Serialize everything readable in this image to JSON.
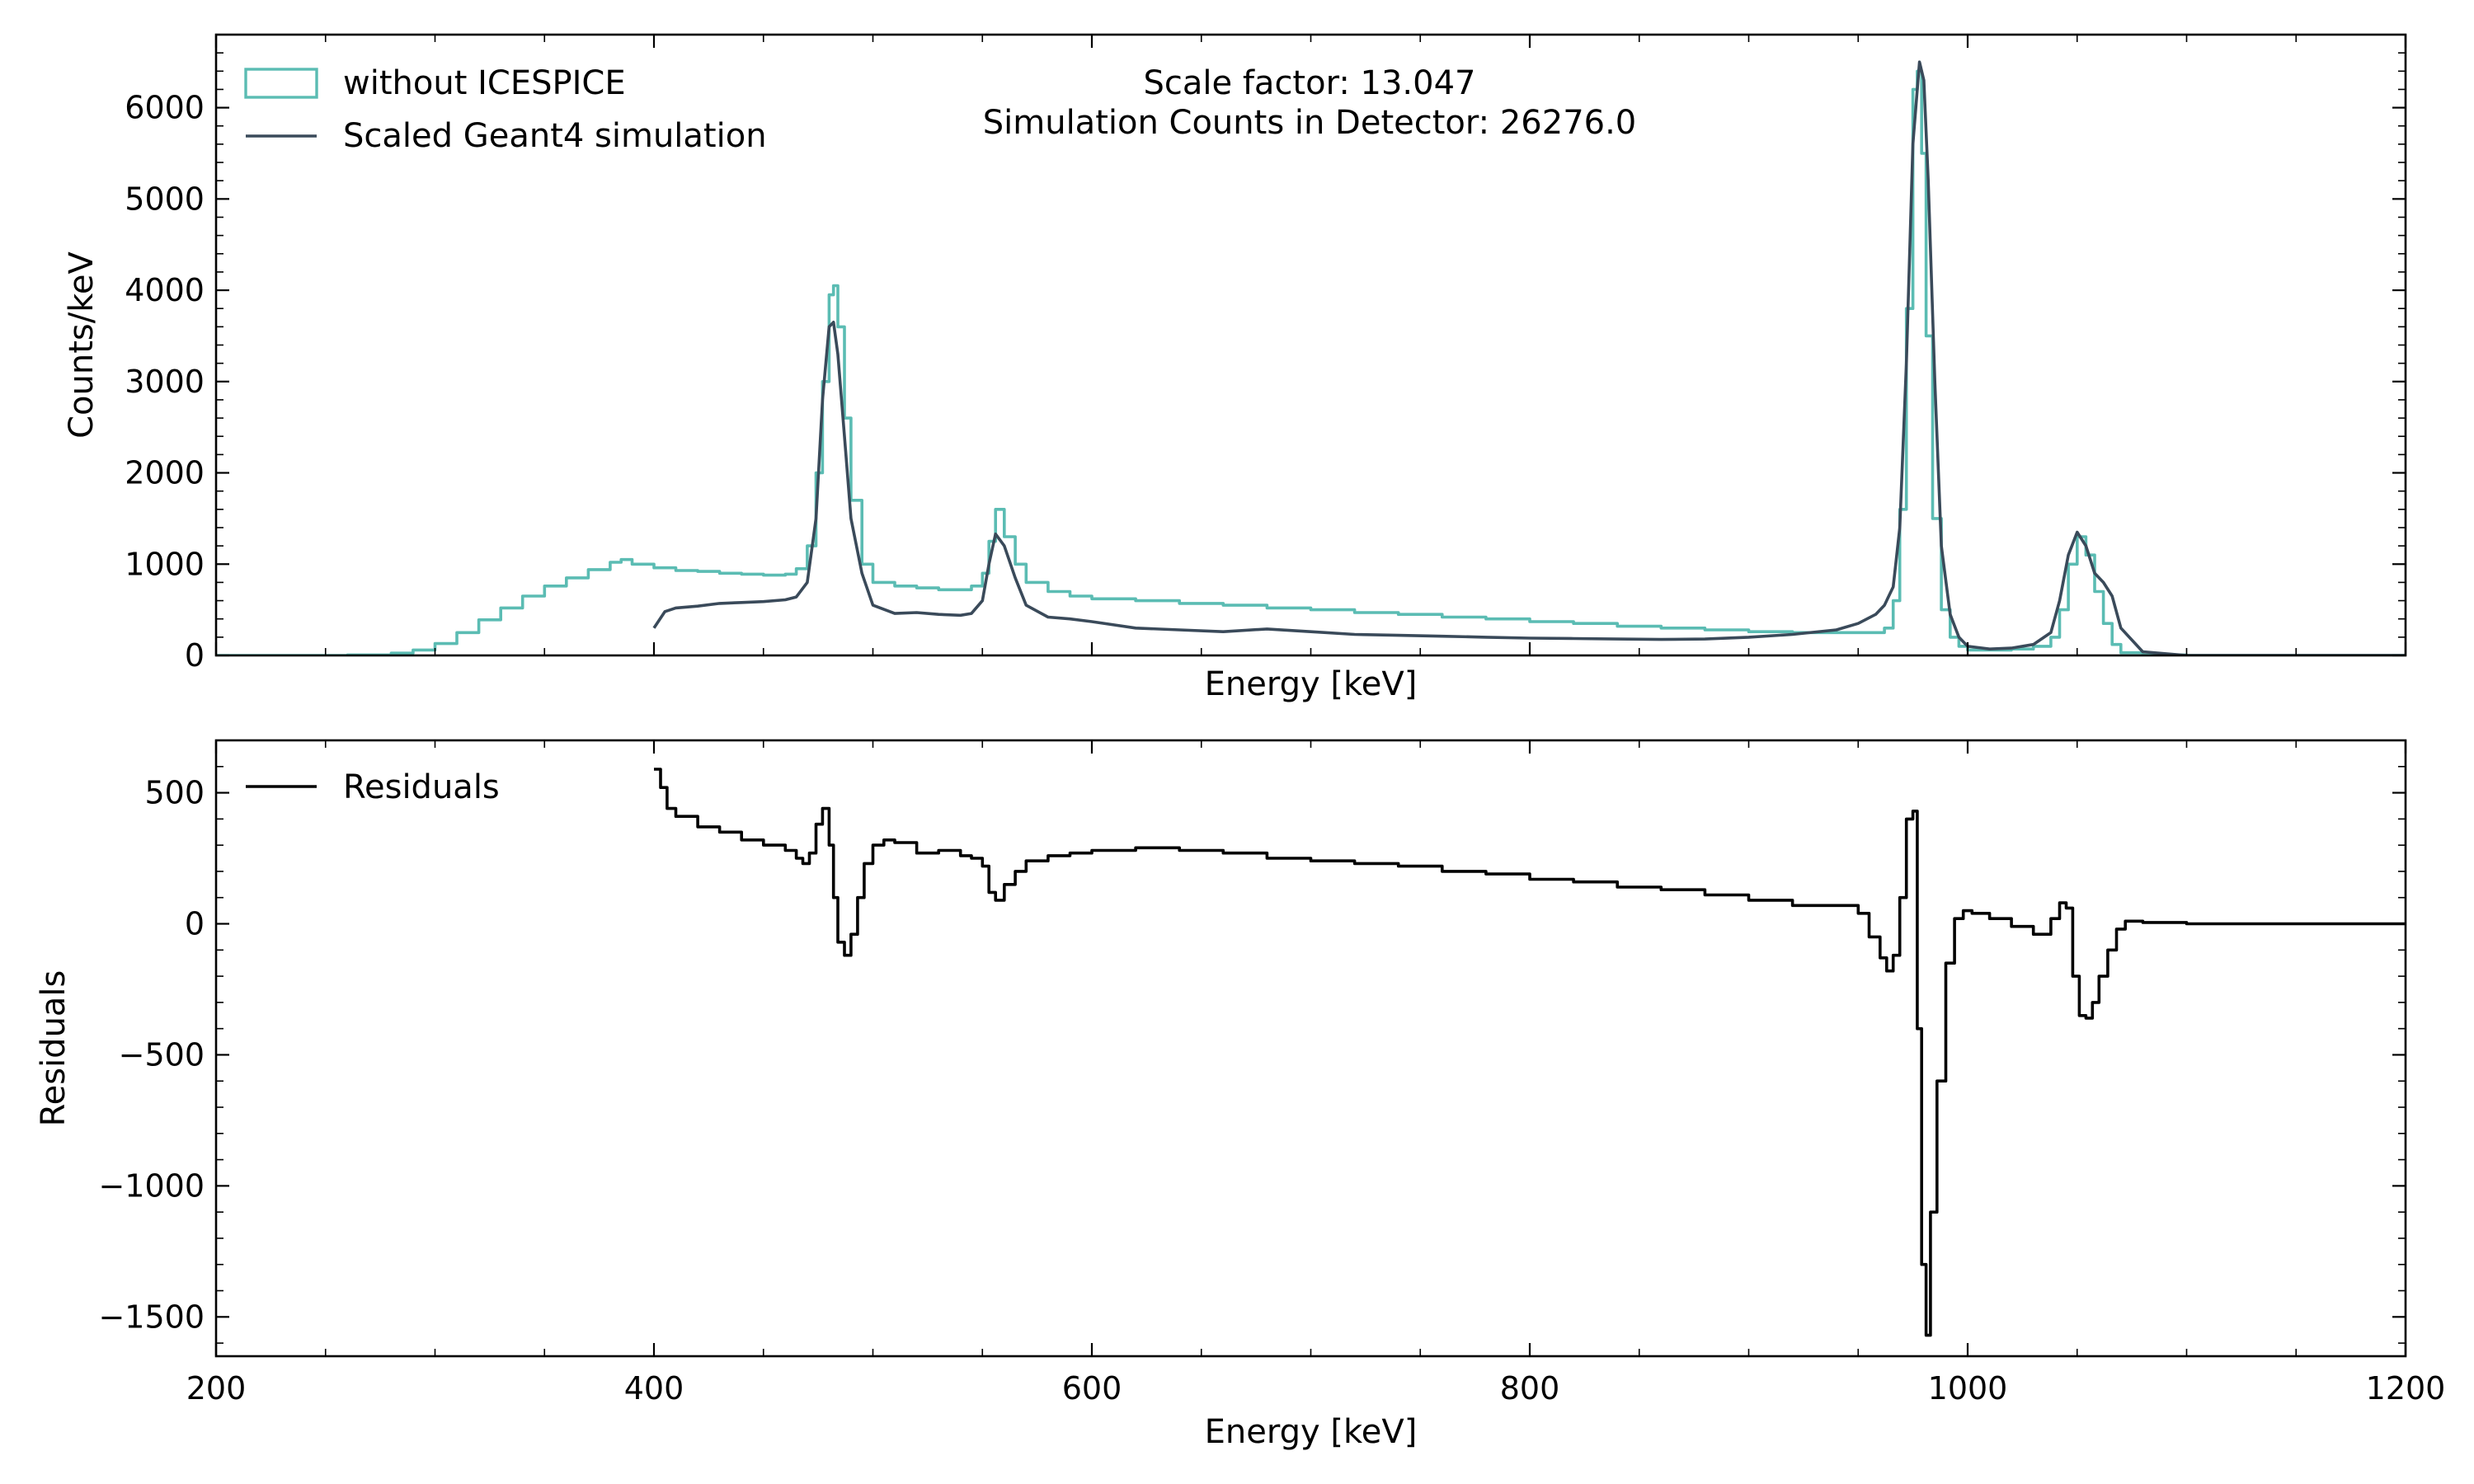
{
  "chart_data": [
    {
      "type": "line",
      "panel": "top",
      "xlabel": "Energy [keV]",
      "ylabel": "Counts/keV",
      "xlim": [
        200,
        1200
      ],
      "ylim": [
        0,
        6800
      ],
      "xticks": [
        200,
        400,
        600,
        800,
        1000,
        1200
      ],
      "yticks": [
        0,
        1000,
        2000,
        3000,
        4000,
        5000,
        6000
      ],
      "show_x_ticklabels": false,
      "grid": false,
      "legend": {
        "position": "top-left",
        "entries": [
          {
            "label": "without ICESPICE",
            "style": "step-hist"
          },
          {
            "label": "Scaled Geant4 simulation",
            "style": "line"
          }
        ]
      },
      "annotation": {
        "line1": "Scale factor: 13.047",
        "line2": "Simulation Counts in Detector: 26276.0"
      },
      "series": [
        {
          "name": "without ICESPICE",
          "color": "#5bbcb3",
          "style": "step",
          "x": [
            200,
            260,
            280,
            290,
            300,
            310,
            320,
            330,
            340,
            350,
            360,
            370,
            380,
            385,
            390,
            400,
            410,
            420,
            430,
            440,
            450,
            460,
            465,
            470,
            474,
            477,
            480,
            482,
            484,
            487,
            490,
            495,
            500,
            510,
            520,
            530,
            540,
            545,
            550,
            553,
            556,
            560,
            565,
            570,
            580,
            590,
            600,
            620,
            640,
            660,
            680,
            700,
            720,
            740,
            760,
            780,
            800,
            820,
            840,
            860,
            880,
            900,
            920,
            940,
            950,
            958,
            962,
            966,
            969,
            972,
            975,
            977,
            979,
            981,
            984,
            988,
            992,
            996,
            1000,
            1010,
            1020,
            1030,
            1038,
            1042,
            1046,
            1050,
            1054,
            1058,
            1062,
            1066,
            1070,
            1080,
            1100,
            1150,
            1200
          ],
          "y": [
            0,
            5,
            25,
            60,
            130,
            250,
            390,
            520,
            650,
            760,
            850,
            940,
            1020,
            1050,
            1000,
            960,
            930,
            920,
            900,
            890,
            880,
            890,
            950,
            1200,
            2000,
            3000,
            3950,
            4050,
            3600,
            2600,
            1700,
            1000,
            800,
            760,
            740,
            720,
            720,
            760,
            900,
            1250,
            1600,
            1300,
            1000,
            800,
            700,
            650,
            620,
            600,
            570,
            550,
            520,
            500,
            470,
            450,
            420,
            400,
            370,
            350,
            320,
            300,
            280,
            260,
            250,
            250,
            250,
            250,
            300,
            600,
            1600,
            3800,
            6200,
            6400,
            5500,
            3500,
            1500,
            500,
            200,
            100,
            60,
            60,
            70,
            100,
            200,
            500,
            1000,
            1300,
            1100,
            700,
            350,
            120,
            30,
            5,
            0,
            0,
            0
          ]
        },
        {
          "name": "Scaled Geant4 simulation",
          "color": "#3a4a5a",
          "style": "line",
          "x": [
            400,
            405,
            410,
            420,
            430,
            440,
            450,
            460,
            465,
            470,
            474,
            477,
            480,
            482,
            484,
            487,
            490,
            495,
            500,
            510,
            520,
            530,
            540,
            545,
            550,
            553,
            556,
            560,
            565,
            570,
            580,
            590,
            600,
            620,
            640,
            660,
            680,
            700,
            720,
            740,
            760,
            780,
            800,
            820,
            840,
            860,
            880,
            900,
            920,
            940,
            950,
            958,
            962,
            966,
            969,
            972,
            975,
            978,
            980,
            982,
            985,
            988,
            992,
            996,
            1000,
            1010,
            1020,
            1030,
            1038,
            1042,
            1046,
            1050,
            1054,
            1058,
            1062,
            1066,
            1070,
            1080,
            1100,
            1150,
            1200
          ],
          "y": [
            300,
            480,
            520,
            540,
            570,
            580,
            590,
            610,
            640,
            800,
            1500,
            2800,
            3600,
            3650,
            3300,
            2400,
            1500,
            900,
            550,
            460,
            470,
            450,
            440,
            460,
            600,
            1000,
            1330,
            1200,
            850,
            550,
            420,
            400,
            370,
            300,
            280,
            260,
            290,
            260,
            230,
            220,
            210,
            200,
            190,
            185,
            180,
            175,
            180,
            200,
            230,
            280,
            350,
            450,
            550,
            750,
            1400,
            3200,
            5600,
            6500,
            6300,
            5200,
            3000,
            1200,
            450,
            200,
            100,
            70,
            80,
            120,
            250,
            600,
            1100,
            1350,
            1200,
            900,
            800,
            650,
            300,
            40,
            0,
            0,
            0
          ]
        }
      ]
    },
    {
      "type": "line",
      "panel": "bottom",
      "xlabel": "Energy [keV]",
      "ylabel": "Residuals",
      "xlim": [
        200,
        1200
      ],
      "ylim": [
        -1650,
        700
      ],
      "xticks": [
        200,
        400,
        600,
        800,
        1000,
        1200
      ],
      "yticks": [
        -1500,
        -1000,
        -500,
        0,
        500
      ],
      "show_x_ticklabels": true,
      "grid": false,
      "legend": {
        "position": "top-left",
        "entries": [
          {
            "label": "Residuals",
            "style": "line"
          }
        ]
      },
      "series": [
        {
          "name": "Residuals",
          "color": "#000000",
          "style": "step",
          "x": [
            400,
            403,
            406,
            410,
            420,
            430,
            440,
            450,
            460,
            465,
            468,
            471,
            474,
            477,
            480,
            482,
            484,
            487,
            490,
            493,
            496,
            500,
            505,
            510,
            520,
            530,
            540,
            545,
            550,
            553,
            556,
            560,
            565,
            570,
            580,
            590,
            600,
            620,
            640,
            660,
            680,
            700,
            720,
            740,
            760,
            780,
            800,
            820,
            840,
            860,
            880,
            900,
            920,
            940,
            950,
            955,
            960,
            963,
            966,
            969,
            972,
            975,
            977,
            979,
            981,
            983,
            986,
            990,
            994,
            998,
            1002,
            1010,
            1020,
            1030,
            1038,
            1042,
            1045,
            1048,
            1051,
            1054,
            1057,
            1060,
            1064,
            1068,
            1072,
            1080,
            1100,
            1150,
            1200
          ],
          "y": [
            590,
            520,
            440,
            410,
            370,
            350,
            320,
            300,
            280,
            250,
            230,
            270,
            380,
            440,
            300,
            100,
            -70,
            -120,
            -40,
            100,
            230,
            300,
            320,
            310,
            270,
            280,
            260,
            250,
            220,
            120,
            90,
            150,
            200,
            240,
            260,
            270,
            280,
            290,
            280,
            270,
            250,
            240,
            230,
            220,
            200,
            190,
            170,
            160,
            140,
            130,
            110,
            90,
            70,
            70,
            40,
            -50,
            -130,
            -180,
            -120,
            100,
            400,
            430,
            -400,
            -1300,
            -1570,
            -1100,
            -600,
            -150,
            20,
            50,
            40,
            20,
            -10,
            -40,
            20,
            80,
            60,
            -200,
            -350,
            -360,
            -300,
            -200,
            -100,
            -20,
            10,
            5,
            0,
            0,
            0
          ]
        }
      ]
    }
  ]
}
